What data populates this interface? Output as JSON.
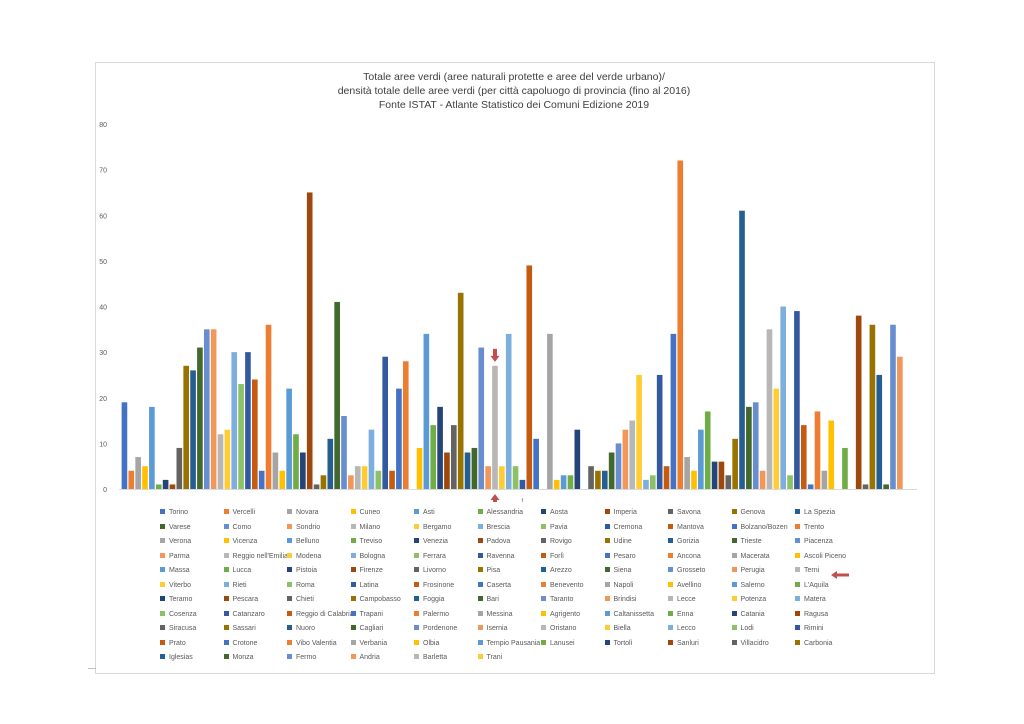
{
  "chart_data": {
    "type": "bar",
    "title_lines": [
      "Totale aree verdi (aree naturali protette e aree del verde urbano)/",
      "densità totale delle aree verdi (per città capoluogo di provincia (fino al 2016)",
      "Fonte ISTAT - Atlante Statistico dei Comuni Edizione 2019"
    ],
    "ylim": [
      0,
      80
    ],
    "yticks": [
      0,
      10,
      20,
      30,
      40,
      50,
      60,
      70,
      80
    ],
    "x_tick_label": "1",
    "legend_columns": 10,
    "highlight": "Terni",
    "palette": [
      "#4472C4",
      "#ED7D31",
      "#A5A5A5",
      "#FFC000",
      "#5B9BD5",
      "#70AD47",
      "#264478",
      "#9E480E",
      "#636363",
      "#997300",
      "#255E91",
      "#43682B",
      "#698ED0",
      "#F1975A",
      "#B7B7B7",
      "#FFCD33",
      "#7CAFDD",
      "#8CC168",
      "#335AA1",
      "#C55A11"
    ],
    "highlight_color": "#C0504D",
    "categories": [
      "Torino",
      "Vercelli",
      "Novara",
      "Cuneo",
      "Asti",
      "Alessandria",
      "Aosta",
      "Imperia",
      "Savona",
      "Genova",
      "La Spezia",
      "Varese",
      "Como",
      "Sondrio",
      "Milano",
      "Bergamo",
      "Brescia",
      "Pavia",
      "Cremona",
      "Mantova",
      "Bolzano/Bozen",
      "Trento",
      "Verona",
      "Vicenza",
      "Belluno",
      "Treviso",
      "Venezia",
      "Padova",
      "Rovigo",
      "Udine",
      "Gorizia",
      "Trieste",
      "Piacenza",
      "Parma",
      "Reggio nell'Emilia",
      "Modena",
      "Bologna",
      "Ferrara",
      "Ravenna",
      "Forlì",
      "Pesaro",
      "Ancona",
      "Macerata",
      "Ascoli Piceno",
      "Massa",
      "Lucca",
      "Pistoia",
      "Firenze",
      "Livorno",
      "Pisa",
      "Arezzo",
      "Siena",
      "Grosseto",
      "Perugia",
      "Terni",
      "Viterbo",
      "Rieti",
      "Roma",
      "Latina",
      "Frosinone",
      "Caserta",
      "Benevento",
      "Napoli",
      "Avellino",
      "Salerno",
      "L'Aquila",
      "Teramo",
      "Pescara",
      "Chieti",
      "Campobasso",
      "Foggia",
      "Bari",
      "Taranto",
      "Brindisi",
      "Lecce",
      "Potenza",
      "Matera",
      "Cosenza",
      "Catanzaro",
      "Reggio di Calabria",
      "Trapani",
      "Palermo",
      "Messina",
      "Agrigento",
      "Caltanissetta",
      "Enna",
      "Catania",
      "Ragusa",
      "Siracusa",
      "Sassari",
      "Nuoro",
      "Cagliari",
      "Pordenone",
      "Isernia",
      "Oristano",
      "Biella",
      "Lecco",
      "Lodi",
      "Rimini",
      "Prato",
      "Crotone",
      "Vibo Valentia",
      "Verbania",
      "Olbia",
      "Tempio Pausania",
      "Lanusei",
      "Tortolì",
      "Sanluri",
      "Villacidro",
      "Carbonia",
      "Iglesias",
      "Monza",
      "Fermo",
      "Andria",
      "Barletta",
      "Trani"
    ],
    "values": [
      19,
      4,
      7,
      5,
      18,
      1,
      2,
      1,
      9,
      27,
      26,
      31,
      35,
      35,
      12,
      13,
      30,
      23,
      30,
      24,
      4,
      36,
      8,
      4,
      22,
      12,
      8,
      65,
      1,
      3,
      11,
      41,
      16,
      3,
      5,
      5,
      13,
      4,
      29,
      4,
      22,
      28,
      0,
      9,
      34,
      14,
      18,
      8,
      14,
      43,
      8,
      9,
      31,
      5,
      27,
      5,
      34,
      5,
      2,
      49,
      11,
      0,
      34,
      2,
      3,
      3,
      13,
      0,
      5,
      4,
      4,
      8,
      10,
      13,
      15,
      25,
      2,
      3,
      25,
      5,
      34,
      72,
      7,
      4,
      13,
      17,
      6,
      6,
      3,
      11,
      61,
      18,
      19,
      4,
      35,
      22,
      40,
      3,
      39,
      14,
      1,
      17,
      4,
      15,
      0,
      9,
      0,
      38,
      1,
      36,
      25,
      1,
      36,
      29,
      0,
      0
    ],
    "legend": [
      "Torino",
      "Vercelli",
      "Novara",
      "Cuneo",
      "Asti",
      "Alessandria",
      "Aosta",
      "Imperia",
      "Savona",
      "Genova",
      "La Spezia",
      "Varese",
      "Como",
      "Sondrio",
      "Milano",
      "Bergamo",
      "Brescia",
      "Pavia",
      "Cremona",
      "Mantova",
      "Bolzano/Bozen",
      "Trento",
      "Verona",
      "Vicenza",
      "Belluno",
      "Treviso",
      "Venezia",
      "Padova",
      "Rovigo",
      "Udine",
      "Gorizia",
      "Trieste",
      "Piacenza",
      "Parma",
      "Reggio nell'Emilia",
      "Modena",
      "Bologna",
      "Ferrara",
      "Ravenna",
      "Forlì",
      "Pesaro",
      "Ancona",
      "Macerata",
      "Ascoli Piceno",
      "Massa",
      "Lucca",
      "Pistoia",
      "Firenze",
      "Livorno",
      "Pisa",
      "Arezzo",
      "Siena",
      "Grosseto",
      "Perugia",
      "Terni",
      "Viterbo",
      "Rieti",
      "Roma",
      "Latina",
      "Frosinone",
      "Caserta",
      "Benevento",
      "Napoli",
      "Avellino",
      "Salerno",
      "L'Aquila",
      "Teramo",
      "Pescara",
      "Chieti",
      "Campobasso",
      "Foggia",
      "Bari",
      "Taranto",
      "Brindisi",
      "Lecce",
      "Potenza",
      "Matera",
      "Cosenza",
      "Catanzaro",
      "Reggio di Calabria",
      "Trapani",
      "Palermo",
      "Messina",
      "Agrigento",
      "Caltanissetta",
      "Enna",
      "Catania",
      "Ragusa",
      "Siracusa",
      "Sassari",
      "Nuoro",
      "Cagliari",
      "Pordenone",
      "Isernia",
      "Oristano",
      "Biella",
      "Lecco",
      "Lodi",
      "Rimini",
      "Prato",
      "Crotone",
      "Vibo Valentia",
      "Verbania",
      "Olbia",
      "Tempio Pausania",
      "Lanusei",
      "Tortolì",
      "Sanluri",
      "Villacidro",
      "Carbonia",
      "Iglesias",
      "Monza",
      "Fermo",
      "Andria",
      "Barletta",
      "Trani"
    ]
  }
}
